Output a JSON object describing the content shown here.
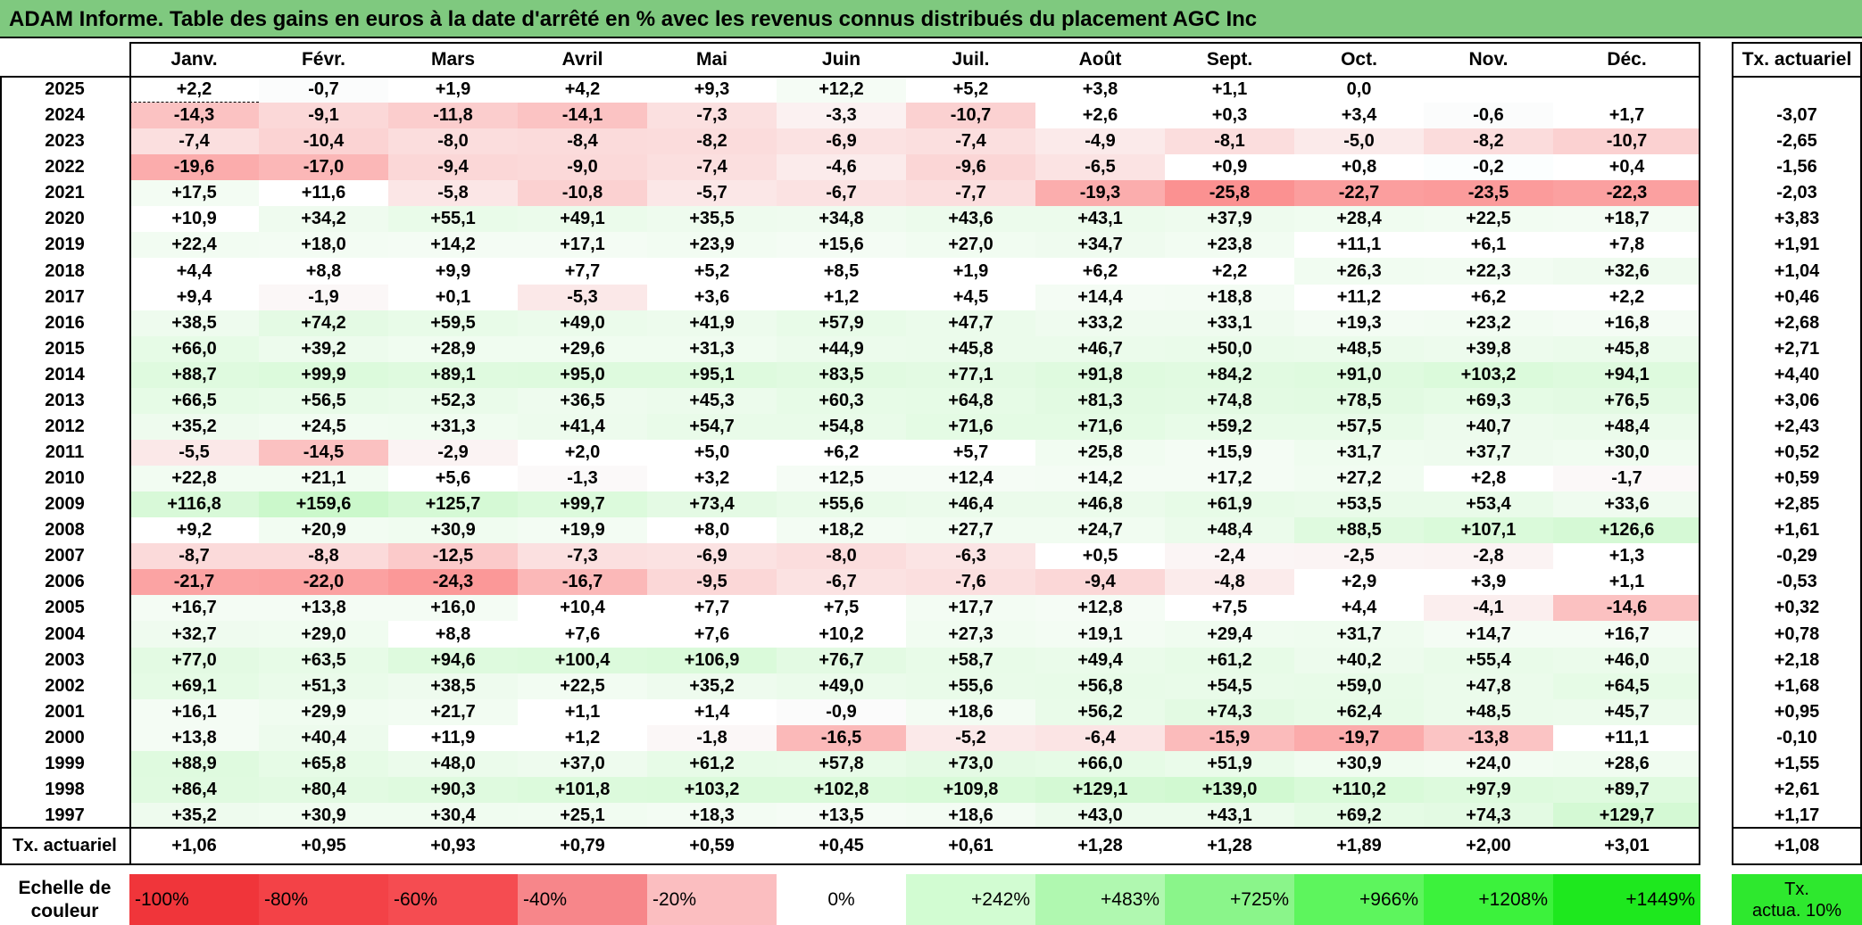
{
  "title": "ADAM Informe. Table des gains en euros à la date d'arrêté en % avec les revenus connus distribués du placement AGC Inc",
  "months": [
    "Janv.",
    "Févr.",
    "Mars",
    "Avril",
    "Mai",
    "Juin",
    "Juil.",
    "Août",
    "Sept.",
    "Oct.",
    "Nov.",
    "Déc."
  ],
  "rate_header": "Tx. actuariel",
  "rows": [
    {
      "year": "2025",
      "values": [
        "+2,2",
        "-0,7",
        "+1,9",
        "+4,2",
        "+9,3",
        "+12,2",
        "+5,2",
        "+3,8",
        "+1,1",
        "0,0",
        "",
        ""
      ],
      "rate": ""
    },
    {
      "year": "2024",
      "values": [
        "-14,3",
        "-9,1",
        "-11,8",
        "-14,1",
        "-7,3",
        "-3,3",
        "-10,7",
        "+2,6",
        "+0,3",
        "+3,4",
        "-0,6",
        "+1,7"
      ],
      "rate": "-3,07"
    },
    {
      "year": "2023",
      "values": [
        "-7,4",
        "-10,4",
        "-8,0",
        "-8,4",
        "-8,2",
        "-6,9",
        "-7,4",
        "-4,9",
        "-8,1",
        "-5,0",
        "-8,2",
        "-10,7"
      ],
      "rate": "-2,65"
    },
    {
      "year": "2022",
      "values": [
        "-19,6",
        "-17,0",
        "-9,4",
        "-9,0",
        "-7,4",
        "-4,6",
        "-9,6",
        "-6,5",
        "+0,9",
        "+0,8",
        "-0,2",
        "+0,4"
      ],
      "rate": "-1,56"
    },
    {
      "year": "2021",
      "values": [
        "+17,5",
        "+11,6",
        "-5,8",
        "-10,8",
        "-5,7",
        "-6,7",
        "-7,7",
        "-19,3",
        "-25,8",
        "-22,7",
        "-23,5",
        "-22,3"
      ],
      "rate": "-2,03"
    },
    {
      "year": "2020",
      "values": [
        "+10,9",
        "+34,2",
        "+55,1",
        "+49,1",
        "+35,5",
        "+34,8",
        "+43,6",
        "+43,1",
        "+37,9",
        "+28,4",
        "+22,5",
        "+18,7"
      ],
      "rate": "+3,83"
    },
    {
      "year": "2019",
      "values": [
        "+22,4",
        "+18,0",
        "+14,2",
        "+17,1",
        "+23,9",
        "+15,6",
        "+27,0",
        "+34,7",
        "+23,8",
        "+11,1",
        "+6,1",
        "+7,8"
      ],
      "rate": "+1,91"
    },
    {
      "year": "2018",
      "values": [
        "+4,4",
        "+8,8",
        "+9,9",
        "+7,7",
        "+5,2",
        "+8,5",
        "+1,9",
        "+6,2",
        "+2,2",
        "+26,3",
        "+22,3",
        "+32,6"
      ],
      "rate": "+1,04"
    },
    {
      "year": "2017",
      "values": [
        "+9,4",
        "-1,9",
        "+0,1",
        "-5,3",
        "+3,6",
        "+1,2",
        "+4,5",
        "+14,4",
        "+18,8",
        "+11,2",
        "+6,2",
        "+2,2"
      ],
      "rate": "+0,46"
    },
    {
      "year": "2016",
      "values": [
        "+38,5",
        "+74,2",
        "+59,5",
        "+49,0",
        "+41,9",
        "+57,9",
        "+47,7",
        "+33,2",
        "+33,1",
        "+19,3",
        "+23,2",
        "+16,8"
      ],
      "rate": "+2,68"
    },
    {
      "year": "2015",
      "values": [
        "+66,0",
        "+39,2",
        "+28,9",
        "+29,6",
        "+31,3",
        "+44,9",
        "+45,8",
        "+46,7",
        "+50,0",
        "+48,5",
        "+39,8",
        "+45,8"
      ],
      "rate": "+2,71"
    },
    {
      "year": "2014",
      "values": [
        "+88,7",
        "+99,9",
        "+89,1",
        "+95,0",
        "+95,1",
        "+83,5",
        "+77,1",
        "+91,8",
        "+84,2",
        "+91,0",
        "+103,2",
        "+94,1"
      ],
      "rate": "+4,40"
    },
    {
      "year": "2013",
      "values": [
        "+66,5",
        "+56,5",
        "+52,3",
        "+36,5",
        "+45,3",
        "+60,3",
        "+64,8",
        "+81,3",
        "+74,8",
        "+78,5",
        "+69,3",
        "+76,5"
      ],
      "rate": "+3,06"
    },
    {
      "year": "2012",
      "values": [
        "+35,2",
        "+24,5",
        "+31,3",
        "+41,4",
        "+54,7",
        "+54,8",
        "+71,6",
        "+71,6",
        "+59,2",
        "+57,5",
        "+40,7",
        "+48,4"
      ],
      "rate": "+2,43"
    },
    {
      "year": "2011",
      "values": [
        "-5,5",
        "-14,5",
        "-2,9",
        "+2,0",
        "+5,0",
        "+6,2",
        "+5,7",
        "+25,8",
        "+15,9",
        "+31,7",
        "+37,7",
        "+30,0"
      ],
      "rate": "+0,52"
    },
    {
      "year": "2010",
      "values": [
        "+22,8",
        "+21,1",
        "+5,6",
        "-1,3",
        "+3,2",
        "+12,5",
        "+12,4",
        "+14,2",
        "+17,2",
        "+27,2",
        "+2,8",
        "-1,7"
      ],
      "rate": "+0,59"
    },
    {
      "year": "2009",
      "values": [
        "+116,8",
        "+159,6",
        "+125,7",
        "+99,7",
        "+73,4",
        "+55,6",
        "+46,4",
        "+46,8",
        "+61,9",
        "+53,5",
        "+53,4",
        "+33,6"
      ],
      "rate": "+2,85"
    },
    {
      "year": "2008",
      "values": [
        "+9,2",
        "+20,9",
        "+30,9",
        "+19,9",
        "+8,0",
        "+18,2",
        "+27,7",
        "+24,7",
        "+48,4",
        "+88,5",
        "+107,1",
        "+126,6"
      ],
      "rate": "+1,61"
    },
    {
      "year": "2007",
      "values": [
        "-8,7",
        "-8,8",
        "-12,5",
        "-7,3",
        "-6,9",
        "-8,0",
        "-6,3",
        "+0,5",
        "-2,4",
        "-2,5",
        "-2,8",
        "+1,3"
      ],
      "rate": "-0,29"
    },
    {
      "year": "2006",
      "values": [
        "-21,7",
        "-22,0",
        "-24,3",
        "-16,7",
        "-9,5",
        "-6,7",
        "-7,6",
        "-9,4",
        "-4,8",
        "+2,9",
        "+3,9",
        "+1,1"
      ],
      "rate": "-0,53"
    },
    {
      "year": "2005",
      "values": [
        "+16,7",
        "+13,8",
        "+16,0",
        "+10,4",
        "+7,7",
        "+7,5",
        "+17,7",
        "+12,8",
        "+7,5",
        "+4,4",
        "-4,1",
        "-14,6"
      ],
      "rate": "+0,32"
    },
    {
      "year": "2004",
      "values": [
        "+32,7",
        "+29,0",
        "+8,8",
        "+7,6",
        "+7,6",
        "+10,2",
        "+27,3",
        "+19,1",
        "+29,4",
        "+31,7",
        "+14,7",
        "+16,7"
      ],
      "rate": "+0,78"
    },
    {
      "year": "2003",
      "values": [
        "+77,0",
        "+63,5",
        "+94,6",
        "+100,4",
        "+106,9",
        "+76,7",
        "+58,7",
        "+49,4",
        "+61,2",
        "+40,2",
        "+55,4",
        "+46,0"
      ],
      "rate": "+2,18"
    },
    {
      "year": "2002",
      "values": [
        "+69,1",
        "+51,3",
        "+38,5",
        "+22,5",
        "+35,2",
        "+49,0",
        "+55,6",
        "+56,8",
        "+54,5",
        "+59,0",
        "+47,8",
        "+64,5"
      ],
      "rate": "+1,68"
    },
    {
      "year": "2001",
      "values": [
        "+16,1",
        "+29,9",
        "+21,7",
        "+1,1",
        "+1,4",
        "-0,9",
        "+18,6",
        "+56,2",
        "+74,3",
        "+62,4",
        "+48,5",
        "+45,7"
      ],
      "rate": "+0,95"
    },
    {
      "year": "2000",
      "values": [
        "+13,8",
        "+40,4",
        "+11,9",
        "+1,2",
        "-1,8",
        "-16,5",
        "-5,2",
        "-6,4",
        "-15,9",
        "-19,7",
        "-13,8",
        "+11,1"
      ],
      "rate": "-0,10"
    },
    {
      "year": "1999",
      "values": [
        "+88,9",
        "+65,8",
        "+48,0",
        "+37,0",
        "+61,2",
        "+57,8",
        "+73,0",
        "+66,0",
        "+51,9",
        "+30,9",
        "+24,0",
        "+28,6"
      ],
      "rate": "+1,55"
    },
    {
      "year": "1998",
      "values": [
        "+86,4",
        "+80,4",
        "+90,3",
        "+101,8",
        "+103,2",
        "+102,8",
        "+109,8",
        "+129,1",
        "+139,0",
        "+110,2",
        "+97,9",
        "+89,7"
      ],
      "rate": "+2,61"
    },
    {
      "year": "1997",
      "values": [
        "+35,2",
        "+30,9",
        "+30,4",
        "+25,1",
        "+18,3",
        "+13,5",
        "+18,6",
        "+43,0",
        "+43,1",
        "+69,2",
        "+74,3",
        "+129,7"
      ],
      "rate": "+1,17"
    }
  ],
  "summary": {
    "label": "Tx. actuariel",
    "values": [
      "+1,06",
      "+0,95",
      "+0,93",
      "+0,79",
      "+0,59",
      "+0,45",
      "+0,61",
      "+1,28",
      "+1,28",
      "+1,89",
      "+2,00",
      "+3,01"
    ],
    "rate": "+1,08"
  },
  "scale": {
    "label_line1": "Echelle de",
    "label_line2": "couleur",
    "items": [
      {
        "label": "-100%",
        "color": "#f0353a"
      },
      {
        "label": "-80%",
        "color": "#f34247"
      },
      {
        "label": "-60%",
        "color": "#f54c51"
      },
      {
        "label": "-40%",
        "color": "#f7868a"
      },
      {
        "label": "-20%",
        "color": "#fbbec0"
      },
      {
        "label": "0%",
        "color": "#ffffff"
      },
      {
        "label": "+242%",
        "color": "#d2fcd2"
      },
      {
        "label": "+483%",
        "color": "#b0f8b0"
      },
      {
        "label": "+725%",
        "color": "#8af58a"
      },
      {
        "label": "+966%",
        "color": "#5df55d"
      },
      {
        "label": "+1208%",
        "color": "#3cf23c"
      },
      {
        "label": "+1449%",
        "color": "#1ee81e"
      }
    ],
    "legend_line1": "Tx.",
    "legend_line2": "actua. 10%",
    "legend_color": "#2ee82e"
  }
}
